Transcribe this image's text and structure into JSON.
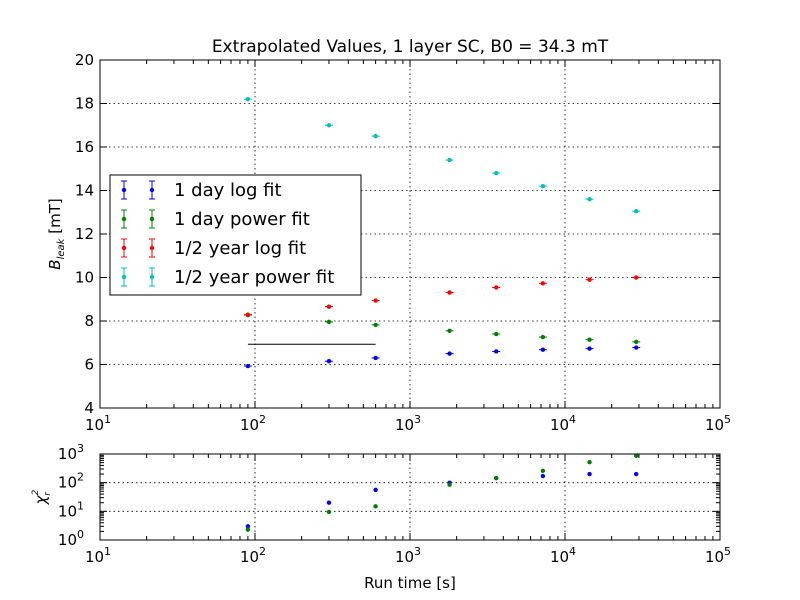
{
  "chart_data": [
    {
      "type": "scatter",
      "title": "Extrapolated Values, 1 layer SC, B0 = 34.3 mT",
      "xlabel": "",
      "ylabel": "B_leak [mT]",
      "ylabel_main": "B",
      "ylabel_sub": "leak",
      "ylabel_unit": " [mT]",
      "xscale": "log",
      "xlim": [
        10,
        100000
      ],
      "ylim": [
        4,
        20
      ],
      "yticks": [
        4,
        6,
        8,
        10,
        12,
        14,
        16,
        18,
        20
      ],
      "xtick_bases": [
        "10",
        "10",
        "10",
        "10",
        "10"
      ],
      "xtick_exps": [
        "1",
        "2",
        "3",
        "4",
        "5"
      ],
      "grid": true,
      "legend_location": "center-left",
      "series": [
        {
          "name": "1 day log fit",
          "color": "#0000ff",
          "x": [
            90,
            300,
            600,
            1800,
            3600,
            7200,
            14400,
            28800
          ],
          "y": [
            5.93,
            6.15,
            6.3,
            6.5,
            6.6,
            6.68,
            6.73,
            6.78
          ]
        },
        {
          "name": "1 day power fit",
          "color": "#008000",
          "x": [
            90,
            300,
            600,
            1800,
            3600,
            7200,
            14400,
            28800
          ],
          "y": [
            8.27,
            7.96,
            7.82,
            7.55,
            7.4,
            7.26,
            7.14,
            7.04
          ]
        },
        {
          "name": "1/2 year log fit",
          "color": "#ff0000",
          "x": [
            90,
            300,
            600,
            1800,
            3600,
            7200,
            14400,
            28800
          ],
          "y": [
            8.29,
            8.66,
            8.94,
            9.31,
            9.54,
            9.73,
            9.9,
            10.0
          ]
        },
        {
          "name": "1/2 year power fit",
          "color": "#00bfbf",
          "x": [
            90,
            300,
            600,
            1800,
            3600,
            7200,
            14400,
            28800
          ],
          "y": [
            18.2,
            17.0,
            16.5,
            15.4,
            14.8,
            14.2,
            13.6,
            13.05
          ]
        }
      ],
      "reference_line": {
        "x": [
          90,
          600
        ],
        "y": 6.93
      }
    },
    {
      "type": "scatter",
      "title": "",
      "xlabel": "Run time [s]",
      "ylabel": "χ_r^2",
      "ylabel_main": "χ",
      "ylabel_sub": "r",
      "ylabel_sup": "2",
      "xscale": "log",
      "yscale": "log",
      "xlim": [
        10,
        100000
      ],
      "ylim": [
        1,
        1000
      ],
      "xtick_bases": [
        "10",
        "10",
        "10",
        "10",
        "10"
      ],
      "xtick_exps": [
        "1",
        "2",
        "3",
        "4",
        "5"
      ],
      "ytick_bases": [
        "10",
        "10",
        "10",
        "10"
      ],
      "ytick_exps": [
        "0",
        "1",
        "2",
        "3"
      ],
      "grid": true,
      "series": [
        {
          "color": "#0000ff",
          "x": [
            90,
            300,
            600,
            1800,
            3600,
            7200,
            14400,
            28800
          ],
          "y": [
            3.0,
            20,
            56,
            100,
            145,
            170,
            200,
            200
          ]
        },
        {
          "color": "#008000",
          "x": [
            90,
            300,
            600,
            1800,
            3600,
            7200,
            14400,
            28800
          ],
          "y": [
            2.3,
            9.5,
            15,
            85,
            145,
            260,
            520,
            860
          ]
        }
      ]
    }
  ]
}
